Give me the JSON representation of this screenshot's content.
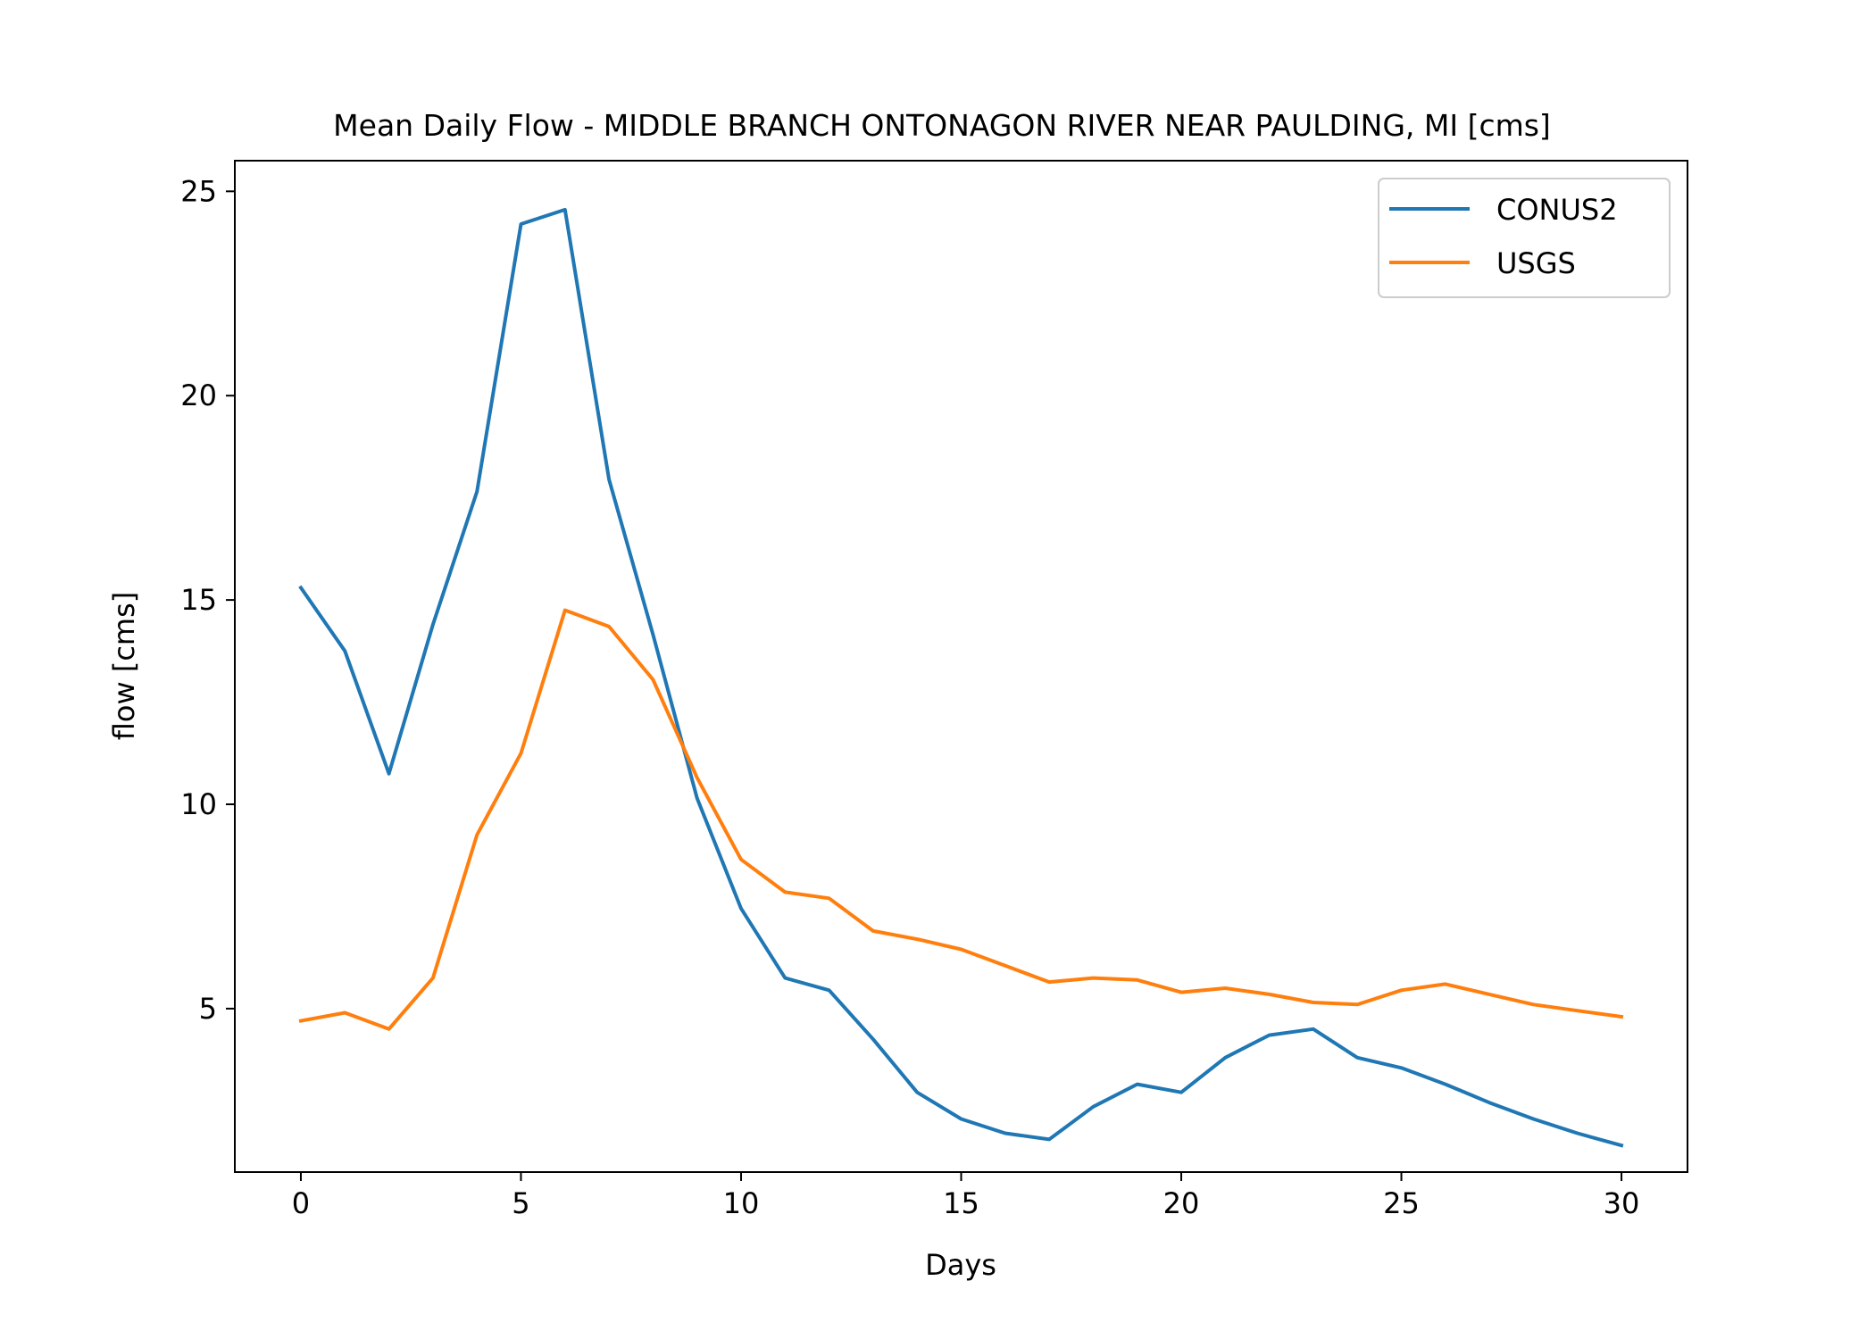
{
  "chart_data": {
    "type": "line",
    "title": "Mean Daily Flow - MIDDLE BRANCH ONTONAGON RIVER NEAR PAULDING, MI [cms]",
    "xlabel": "Days",
    "ylabel": "flow [cms]",
    "xlim": [
      -1.5,
      31.5
    ],
    "ylim": [
      1.0,
      25.75
    ],
    "xticks": [
      0,
      5,
      10,
      15,
      20,
      25,
      30
    ],
    "yticks": [
      5,
      10,
      15,
      20,
      25
    ],
    "grid": false,
    "legend_position": "top-right",
    "x": [
      0,
      1,
      2,
      3,
      4,
      5,
      6,
      7,
      8,
      9,
      10,
      11,
      12,
      13,
      14,
      15,
      16,
      17,
      18,
      19,
      20,
      21,
      22,
      23,
      24,
      25,
      26,
      27,
      28,
      29,
      30
    ],
    "series": [
      {
        "name": "CONUS2",
        "color": "#1f77b4",
        "values": [
          15.3,
          13.75,
          10.75,
          14.4,
          17.65,
          24.2,
          24.55,
          17.95,
          14.15,
          10.15,
          7.45,
          5.75,
          5.45,
          4.25,
          2.95,
          2.3,
          1.95,
          1.8,
          2.6,
          3.15,
          2.95,
          3.8,
          4.35,
          4.5,
          3.8,
          3.55,
          3.15,
          2.7,
          2.3,
          1.95,
          1.65
        ]
      },
      {
        "name": "USGS",
        "color": "#ff7f0e",
        "values": [
          4.7,
          4.9,
          4.5,
          5.75,
          9.25,
          11.25,
          14.75,
          14.35,
          13.05,
          10.65,
          8.65,
          7.85,
          7.7,
          6.9,
          6.7,
          6.45,
          6.05,
          5.65,
          5.75,
          5.7,
          5.4,
          5.5,
          5.35,
          5.15,
          5.1,
          5.45,
          5.6,
          5.35,
          5.1,
          4.95,
          4.8
        ]
      }
    ]
  }
}
